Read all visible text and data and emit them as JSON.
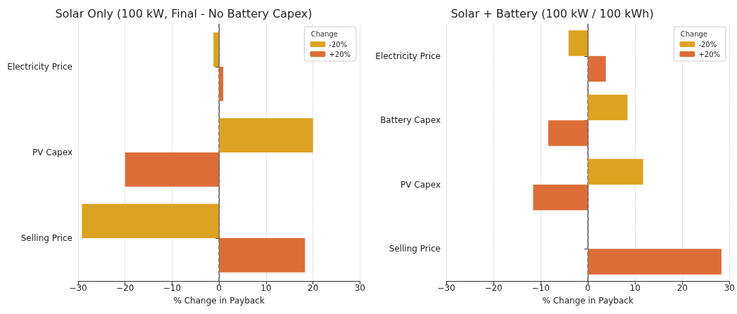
{
  "chart_data": [
    {
      "type": "bar",
      "orientation": "horizontal",
      "title": "Solar Only (100 kW, Final - No Battery Capex)",
      "xlabel": "% Change in Payback",
      "legend_title": "Change",
      "legend": "top right",
      "grid": "x",
      "categories": [
        "Electricity Price",
        "PV Capex",
        "Selling Price"
      ],
      "series": [
        {
          "name": "-20%",
          "color": "#dca221",
          "values": [
            -1.2,
            20,
            -29.2
          ]
        },
        {
          "name": "+20%",
          "color": "#dc6d38",
          "values": [
            0.9,
            -20,
            18.3
          ]
        }
      ],
      "xlim": [
        -30,
        30
      ],
      "xticks": [
        {
          "value": -30,
          "label": "−30"
        },
        {
          "value": -20,
          "label": "−20"
        },
        {
          "value": -10,
          "label": "−10"
        },
        0,
        10,
        20,
        30
      ],
      "ref_lines": [
        {
          "axis": "x",
          "value": 0,
          "color": "#808080",
          "line_style": "dashed"
        }
      ]
    },
    {
      "type": "bar",
      "orientation": "horizontal",
      "title": "Solar + Battery (100 kW / 100 kWh)",
      "xlabel": "% Change in Payback",
      "legend_title": "Change",
      "legend": "top right",
      "grid": "x",
      "categories": [
        "Electricity Price",
        "Battery Capex",
        "PV Capex",
        "Selling Price"
      ],
      "series": [
        {
          "name": "-20%",
          "color": "#dca221",
          "values": [
            -4.1,
            8.4,
            11.7,
            null
          ]
        },
        {
          "name": "+20%",
          "color": "#dc6d38",
          "values": [
            3.8,
            -8.4,
            -11.6,
            28.3
          ]
        }
      ],
      "xlim": [
        -30,
        30
      ],
      "xticks": [
        {
          "value": -30,
          "label": "−30"
        },
        {
          "value": -20,
          "label": "−20"
        },
        {
          "value": -10,
          "label": "−10"
        },
        0,
        10,
        20,
        30
      ],
      "ref_lines": [
        {
          "axis": "x",
          "value": 0,
          "color": "#808080",
          "line_style": "dashed"
        }
      ]
    }
  ]
}
